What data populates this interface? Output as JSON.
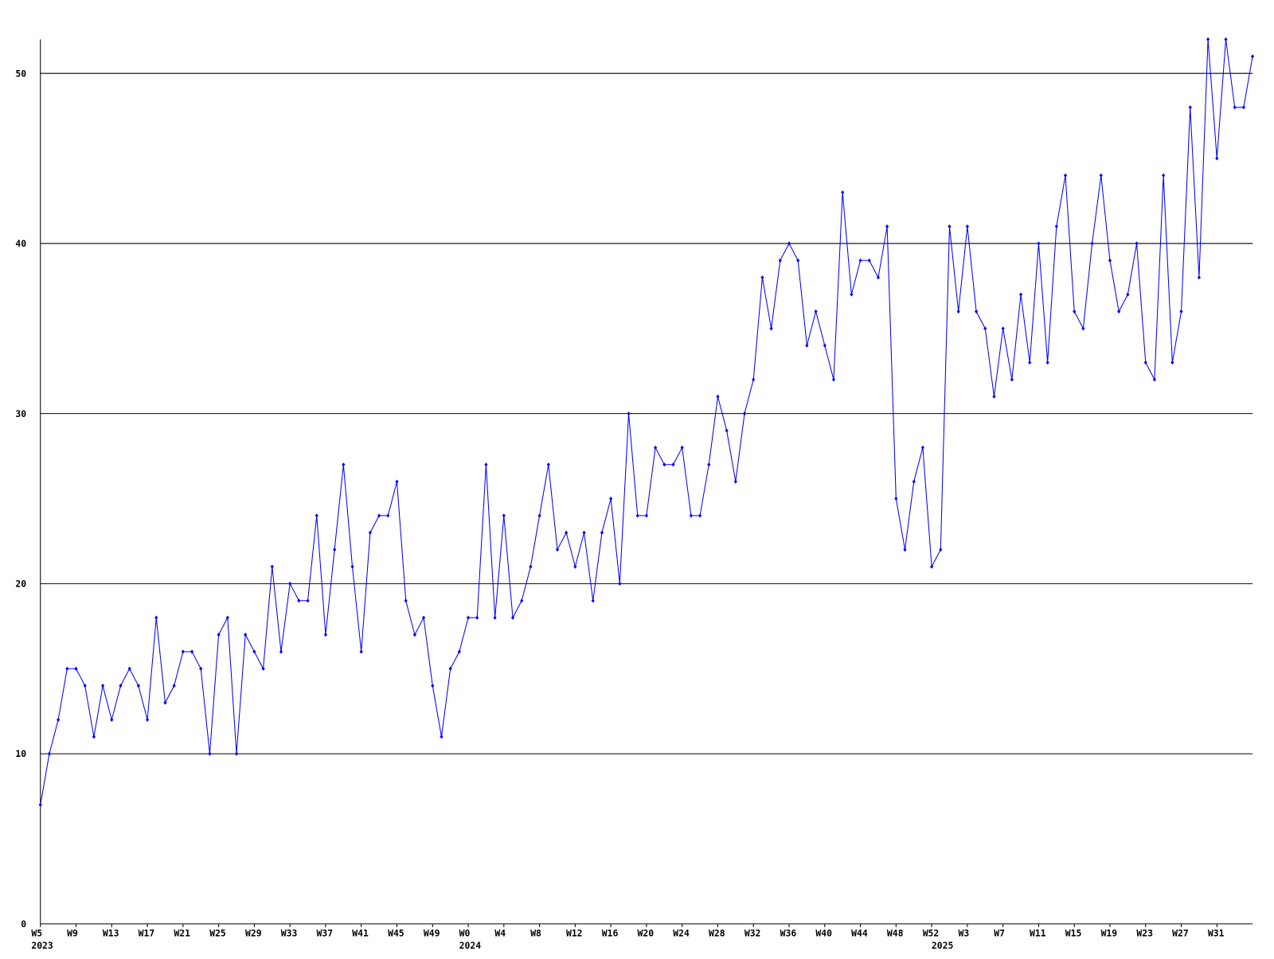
{
  "chart_data": {
    "type": "line",
    "categories": [
      "W5",
      null,
      null,
      null,
      "W9",
      null,
      null,
      null,
      "W13",
      null,
      null,
      null,
      "W17",
      null,
      null,
      null,
      "W21",
      null,
      null,
      null,
      "W25",
      null,
      null,
      null,
      "W29",
      null,
      null,
      null,
      "W33",
      null,
      null,
      null,
      "W37",
      null,
      null,
      null,
      "W41",
      null,
      null,
      null,
      "W45",
      null,
      null,
      null,
      "W49",
      null,
      null,
      null,
      "W0",
      null,
      null,
      null,
      "W4",
      null,
      null,
      null,
      "W8",
      null,
      null,
      null,
      "W12",
      null,
      null,
      null,
      "W16",
      null,
      null,
      null,
      "W20",
      null,
      null,
      null,
      "W24",
      null,
      null,
      null,
      "W28",
      null,
      null,
      null,
      "W32",
      null,
      null,
      null,
      "W36",
      null,
      null,
      null,
      "W40",
      null,
      null,
      null,
      "W44",
      null,
      null,
      null,
      "W48",
      null,
      null,
      null,
      "W52",
      null,
      null,
      null,
      "W3",
      null,
      null,
      null,
      "W7",
      null,
      null,
      null,
      "W11",
      null,
      null,
      null,
      "W15",
      null,
      null,
      null,
      "W19",
      null,
      null,
      null,
      "W23",
      null,
      null,
      null,
      "W27",
      null,
      null,
      null,
      "W31",
      null,
      null,
      null,
      null
    ],
    "year_labels": [
      "2023",
      null,
      null,
      null,
      null,
      null,
      null,
      null,
      null,
      null,
      null,
      null,
      null,
      null,
      null,
      null,
      null,
      null,
      null,
      null,
      null,
      null,
      null,
      null,
      null,
      null,
      null,
      null,
      null,
      null,
      null,
      null,
      null,
      null,
      null,
      null,
      null,
      null,
      null,
      null,
      null,
      null,
      null,
      null,
      null,
      null,
      null,
      null,
      "2024",
      null,
      null,
      null,
      null,
      null,
      null,
      null,
      null,
      null,
      null,
      null,
      null,
      null,
      null,
      null,
      null,
      null,
      null,
      null,
      null,
      null,
      null,
      null,
      null,
      null,
      null,
      null,
      null,
      null,
      null,
      null,
      null,
      null,
      null,
      null,
      null,
      null,
      null,
      null,
      null,
      null,
      null,
      null,
      null,
      null,
      null,
      null,
      null,
      null,
      null,
      null,
      null,
      "2025",
      null,
      null,
      null,
      null,
      null,
      null,
      null,
      null,
      null,
      null,
      null,
      null,
      null,
      null,
      null,
      null,
      null,
      null,
      null,
      null,
      null,
      null,
      null,
      null,
      null,
      null,
      null,
      null,
      null,
      null,
      null,
      null,
      null,
      null,
      null
    ],
    "series": [
      {
        "color": "#0000ff",
        "values": [
          7,
          10,
          12,
          15,
          15,
          14,
          11,
          14,
          12,
          14,
          15,
          14,
          12,
          18,
          13,
          14,
          16,
          16,
          15,
          10,
          17,
          18,
          10,
          17,
          16,
          15,
          21,
          16,
          20,
          19,
          19,
          24,
          17,
          22,
          27,
          21,
          16,
          23,
          24,
          24,
          26,
          19,
          17,
          18,
          14,
          11,
          15,
          16,
          18,
          18,
          27,
          18,
          24,
          18,
          19,
          21,
          24,
          27,
          22,
          23,
          21,
          23,
          19,
          23,
          25,
          20,
          30,
          24,
          24,
          28,
          27,
          27,
          28,
          24,
          24,
          27,
          31,
          29,
          26,
          30,
          32,
          38,
          35,
          39,
          40,
          39,
          34,
          36,
          34,
          32,
          43,
          37,
          39,
          39,
          38,
          41,
          25,
          22,
          26,
          28,
          21,
          22,
          41,
          36,
          41,
          36,
          35,
          31,
          35,
          32,
          37,
          33,
          40,
          33,
          41,
          44,
          36,
          35,
          40,
          44,
          39,
          36,
          37,
          40,
          33,
          32,
          44,
          33,
          36,
          48,
          38,
          52,
          45,
          52,
          48,
          48,
          51
        ]
      }
    ],
    "ylim": [
      0,
      52
    ],
    "yticks": [
      0,
      10,
      20,
      30,
      40,
      50
    ],
    "grid": true
  }
}
